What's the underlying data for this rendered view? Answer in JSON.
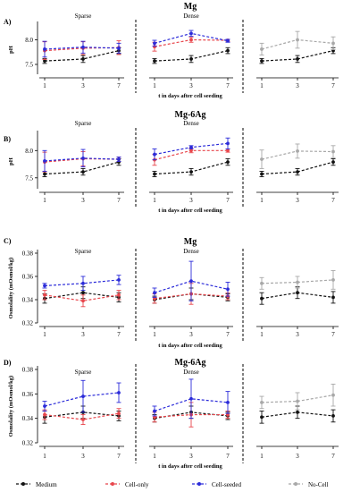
{
  "legend": {
    "medium": "Medium",
    "cell_only": "Cell-only",
    "cell_seeded": "Cell-seeded",
    "no_cell": "No-Cell"
  },
  "colors": {
    "medium": "#111111",
    "cell_only": "#e8454b",
    "cell_seeded": "#2b2bd9",
    "no_cell": "#a8a8a8"
  },
  "chart_data": [
    {
      "type": "line",
      "panel_label": "A)",
      "title": "Mg",
      "ylabel": "pH",
      "xlabel": "t in days after cell seeding",
      "ylim": [
        7.3,
        8.3
      ],
      "yticks": [
        "7.5",
        "8.0"
      ],
      "groups": [
        {
          "name": "Sparse",
          "x": [
            "1",
            "3",
            "7"
          ],
          "series": [
            {
              "key": "medium",
              "values": [
                7.57,
                7.61,
                7.78
              ],
              "err": [
                0.05,
                0.07,
                0.06
              ]
            },
            {
              "key": "cell_only",
              "values": [
                7.78,
                7.83,
                7.84
              ],
              "err": [
                0.18,
                0.13,
                0.14
              ]
            },
            {
              "key": "cell_seeded",
              "values": [
                7.81,
                7.85,
                7.83
              ],
              "err": [
                0.16,
                0.12,
                0.1
              ]
            }
          ]
        },
        {
          "name": "Dense",
          "x": [
            "1",
            "3",
            "7"
          ],
          "series": [
            {
              "key": "medium",
              "values": [
                7.57,
                7.61,
                7.78
              ],
              "err": [
                0.05,
                0.07,
                0.06
              ]
            },
            {
              "key": "cell_only",
              "values": [
                7.86,
                8.0,
                7.99
              ],
              "err": [
                0.09,
                0.05,
                0.02
              ]
            },
            {
              "key": "cell_seeded",
              "values": [
                7.93,
                8.13,
                7.98
              ],
              "err": [
                0.06,
                0.06,
                0.03
              ]
            }
          ]
        },
        {
          "name": "",
          "x": [
            "1",
            "3",
            "7"
          ],
          "series": [
            {
              "key": "medium",
              "values": [
                7.57,
                7.61,
                7.78
              ],
              "err": [
                0.05,
                0.07,
                0.06
              ]
            },
            {
              "key": "no_cell",
              "values": [
                7.81,
                8.0,
                7.93
              ],
              "err": [
                0.12,
                0.17,
                0.13
              ]
            }
          ]
        }
      ]
    },
    {
      "type": "line",
      "panel_label": "B)",
      "title": "Mg-6Ag",
      "ylabel": "pH",
      "xlabel": "t in days after cell seeding",
      "ylim": [
        7.3,
        8.3
      ],
      "yticks": [
        "7.5",
        "8.0"
      ],
      "groups": [
        {
          "name": "Sparse",
          "x": [
            "1",
            "3",
            "7"
          ],
          "series": [
            {
              "key": "medium",
              "values": [
                7.57,
                7.61,
                7.79
              ],
              "err": [
                0.05,
                0.06,
                0.06
              ]
            },
            {
              "key": "cell_only",
              "values": [
                7.79,
                7.85,
                7.84
              ],
              "err": [
                0.18,
                0.13,
                0.04
              ]
            },
            {
              "key": "cell_seeded",
              "values": [
                7.81,
                7.86,
                7.84
              ],
              "err": [
                0.19,
                0.16,
                0.04
              ]
            }
          ]
        },
        {
          "name": "Dense",
          "x": [
            "1",
            "3",
            "7"
          ],
          "series": [
            {
              "key": "medium",
              "values": [
                7.57,
                7.61,
                7.79
              ],
              "err": [
                0.05,
                0.06,
                0.06
              ]
            },
            {
              "key": "cell_only",
              "values": [
                7.83,
                8.0,
                8.0
              ],
              "err": [
                0.1,
                0.04,
                0.03
              ]
            },
            {
              "key": "cell_seeded",
              "values": [
                7.93,
                8.06,
                8.13
              ],
              "err": [
                0.1,
                0.03,
                0.1
              ]
            }
          ]
        },
        {
          "name": "",
          "x": [
            "1",
            "3",
            "7"
          ],
          "series": [
            {
              "key": "medium",
              "values": [
                7.57,
                7.61,
                7.79
              ],
              "err": [
                0.05,
                0.06,
                0.06
              ]
            },
            {
              "key": "no_cell",
              "values": [
                7.84,
                7.99,
                7.98
              ],
              "err": [
                0.17,
                0.13,
                0.11
              ]
            }
          ]
        }
      ]
    },
    {
      "type": "line",
      "panel_label": "C)",
      "title": "Mg",
      "ylabel": "Osmolality (mOsmol/kg)",
      "xlabel": "t in days after cell seeding",
      "ylim": [
        0.32,
        0.38
      ],
      "yticks": [
        "0.32",
        "0.34",
        "0.36",
        "0.38"
      ],
      "groups": [
        {
          "name": "Sparse",
          "x": [
            "1",
            "3",
            "7"
          ],
          "series": [
            {
              "key": "medium",
              "values": [
                0.341,
                0.346,
                0.342
              ],
              "err": [
                0.004,
                0.005,
                0.004
              ]
            },
            {
              "key": "cell_only",
              "values": [
                0.344,
                0.339,
                0.344
              ],
              "err": [
                0.004,
                0.005,
                0.004
              ]
            },
            {
              "key": "cell_seeded",
              "values": [
                0.352,
                0.354,
                0.357
              ],
              "err": [
                0.002,
                0.006,
                0.004
              ]
            }
          ]
        },
        {
          "name": "Dense",
          "x": [
            "1",
            "3",
            "7"
          ],
          "series": [
            {
              "key": "medium",
              "values": [
                0.34,
                0.345,
                0.342
              ],
              "err": [
                0.003,
                0.005,
                0.003
              ]
            },
            {
              "key": "cell_only",
              "values": [
                0.341,
                0.345,
                0.343
              ],
              "err": [
                0.004,
                0.009,
                0.003
              ]
            },
            {
              "key": "cell_seeded",
              "values": [
                0.346,
                0.356,
                0.349
              ],
              "err": [
                0.004,
                0.017,
                0.006
              ]
            }
          ]
        },
        {
          "name": "",
          "x": [
            "1",
            "3",
            "7"
          ],
          "series": [
            {
              "key": "medium",
              "values": [
                0.341,
                0.346,
                0.342
              ],
              "err": [
                0.005,
                0.005,
                0.005
              ]
            },
            {
              "key": "no_cell",
              "values": [
                0.354,
                0.355,
                0.357
              ],
              "err": [
                0.005,
                0.005,
                0.008
              ]
            }
          ]
        }
      ]
    },
    {
      "type": "line",
      "panel_label": "D)",
      "title": "Mg-6Ag",
      "ylabel": "Osmolality (mOsmol/kg)",
      "xlabel": "t in days after cell seeding",
      "ylim": [
        0.32,
        0.38
      ],
      "yticks": [
        "0.32",
        "0.34",
        "0.36",
        "0.38"
      ],
      "groups": [
        {
          "name": "Sparse",
          "x": [
            "1",
            "3",
            "7"
          ],
          "series": [
            {
              "key": "medium",
              "values": [
                0.341,
                0.345,
                0.342
              ],
              "err": [
                0.005,
                0.005,
                0.004
              ]
            },
            {
              "key": "cell_only",
              "values": [
                0.343,
                0.339,
                0.344
              ],
              "err": [
                0.004,
                0.004,
                0.004
              ]
            },
            {
              "key": "cell_seeded",
              "values": [
                0.35,
                0.358,
                0.361
              ],
              "err": [
                0.004,
                0.013,
                0.008
              ]
            }
          ]
        },
        {
          "name": "Dense",
          "x": [
            "1",
            "3",
            "7"
          ],
          "series": [
            {
              "key": "medium",
              "values": [
                0.34,
                0.345,
                0.342
              ],
              "err": [
                0.003,
                0.005,
                0.003
              ]
            },
            {
              "key": "cell_only",
              "values": [
                0.341,
                0.343,
                0.343
              ],
              "err": [
                0.004,
                0.01,
                0.003
              ]
            },
            {
              "key": "cell_seeded",
              "values": [
                0.346,
                0.356,
                0.353
              ],
              "err": [
                0.004,
                0.016,
                0.009
              ]
            }
          ]
        },
        {
          "name": "",
          "x": [
            "1",
            "3",
            "7"
          ],
          "series": [
            {
              "key": "medium",
              "values": [
                0.341,
                0.345,
                0.342
              ],
              "err": [
                0.005,
                0.005,
                0.005
              ]
            },
            {
              "key": "no_cell",
              "values": [
                0.353,
                0.354,
                0.359
              ],
              "err": [
                0.005,
                0.007,
                0.009
              ]
            }
          ]
        }
      ]
    }
  ]
}
